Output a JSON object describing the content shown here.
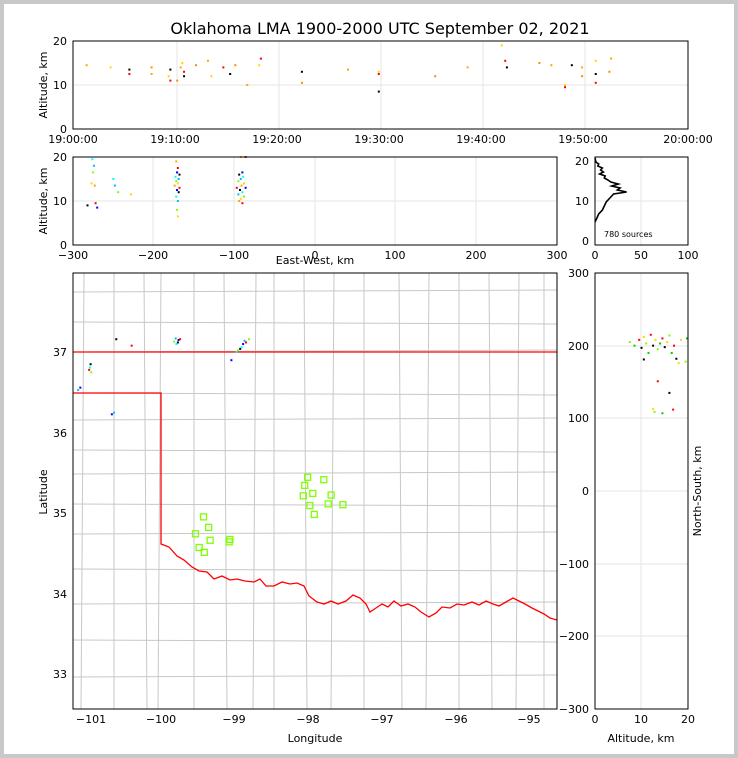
{
  "title": "Oklahoma LMA 1900-2000 UTC September 02, 2021",
  "panels": {
    "time_height": {
      "ylabel": "Altitude, km",
      "x_ticks": [
        "19:00:00",
        "19:10:00",
        "19:20:00",
        "19:30:00",
        "19:40:00",
        "19:50:00",
        "20:00:00"
      ],
      "y_ticks": [
        "0",
        "10",
        "20"
      ]
    },
    "ew_height": {
      "ylabel": "Altitude, km",
      "xlabel": "East-West, km",
      "x_ticks": [
        "−300",
        "−200",
        "−100",
        "0",
        "100",
        "200",
        "300"
      ],
      "y_ticks": [
        "0",
        "10",
        "20"
      ]
    },
    "histogram": {
      "x_ticks": [
        "0",
        "50",
        "100"
      ],
      "y_ticks": [
        "0",
        "10",
        "20"
      ],
      "annotation": "780 sources"
    },
    "map": {
      "xlabel": "Longitude",
      "ylabel": "Latitude",
      "x_ticks": [
        "−101",
        "−100",
        "−99",
        "−98",
        "−97",
        "−96",
        "−95"
      ],
      "y_ticks": [
        "33",
        "34",
        "35",
        "36",
        "37"
      ]
    },
    "ns_height": {
      "xlabel": "Altitude, km",
      "ylabel": "North-South, km",
      "x_ticks": [
        "0",
        "10",
        "20"
      ],
      "y_ticks": [
        "−300",
        "−200",
        "−100",
        "0",
        "100",
        "200",
        "300"
      ]
    }
  },
  "colors": {
    "background": "#c8c8c8",
    "state_border": "#ff0000",
    "county_lines": "#c8c8c8",
    "station_marker": "#7fff00",
    "gridline": "#e6e6e6"
  },
  "chart_data": [
    {
      "type": "scatter",
      "panel": "time_height",
      "xlabel": "",
      "ylabel": "Altitude, km",
      "xlim": [
        "19:00:00",
        "20:00:00"
      ],
      "ylim": [
        0,
        20
      ],
      "grid": true,
      "points": [
        {
          "t": "19:01:20",
          "alt": 14.5
        },
        {
          "t": "19:03:40",
          "alt": 14.0
        },
        {
          "t": "19:05:30",
          "alt": 12.5
        },
        {
          "t": "19:05:30",
          "alt": 13.5
        },
        {
          "t": "19:07:40",
          "alt": 14.0
        },
        {
          "t": "19:07:40",
          "alt": 12.5
        },
        {
          "t": "19:09:20",
          "alt": 12.0
        },
        {
          "t": "19:09:30",
          "alt": 11.0
        },
        {
          "t": "19:09:30",
          "alt": 13.5
        },
        {
          "t": "19:10:10",
          "alt": 11.0
        },
        {
          "t": "19:10:30",
          "alt": 14.0
        },
        {
          "t": "19:10:40",
          "alt": 15.0
        },
        {
          "t": "19:10:50",
          "alt": 13.0
        },
        {
          "t": "19:10:50",
          "alt": 12.0
        },
        {
          "t": "19:12:00",
          "alt": 14.5
        },
        {
          "t": "19:13:10",
          "alt": 15.5
        },
        {
          "t": "19:13:30",
          "alt": 12.0
        },
        {
          "t": "19:14:40",
          "alt": 14.0
        },
        {
          "t": "19:15:20",
          "alt": 12.5
        },
        {
          "t": "19:15:50",
          "alt": 14.5
        },
        {
          "t": "19:17:00",
          "alt": 10.0
        },
        {
          "t": "19:18:10",
          "alt": 14.5
        },
        {
          "t": "19:18:20",
          "alt": 16.0
        },
        {
          "t": "19:22:20",
          "alt": 13.0
        },
        {
          "t": "19:22:20",
          "alt": 10.5
        },
        {
          "t": "19:26:50",
          "alt": 13.5
        },
        {
          "t": "19:29:50",
          "alt": 13.0
        },
        {
          "t": "19:29:50",
          "alt": 12.5
        },
        {
          "t": "19:29:50",
          "alt": 8.5
        },
        {
          "t": "19:35:20",
          "alt": 12.0
        },
        {
          "t": "19:38:30",
          "alt": 14.0
        },
        {
          "t": "19:41:50",
          "alt": 19.0
        },
        {
          "t": "19:42:10",
          "alt": 15.5
        },
        {
          "t": "19:42:20",
          "alt": 14.0
        },
        {
          "t": "19:45:30",
          "alt": 15.0
        },
        {
          "t": "19:46:40",
          "alt": 14.5
        },
        {
          "t": "19:48:00",
          "alt": 10.0
        },
        {
          "t": "19:48:00",
          "alt": 9.5
        },
        {
          "t": "19:48:40",
          "alt": 14.5
        },
        {
          "t": "19:49:40",
          "alt": 12.0
        },
        {
          "t": "19:49:40",
          "alt": 14.0
        },
        {
          "t": "19:51:00",
          "alt": 15.5
        },
        {
          "t": "19:51:00",
          "alt": 10.5
        },
        {
          "t": "19:51:00",
          "alt": 12.5
        },
        {
          "t": "19:52:20",
          "alt": 13.0
        },
        {
          "t": "19:52:30",
          "alt": 16.0
        }
      ]
    },
    {
      "type": "scatter",
      "panel": "ew_height",
      "xlabel": "East-West, km",
      "ylabel": "Altitude, km",
      "xlim": [
        -300,
        300
      ],
      "ylim": [
        0,
        20
      ],
      "grid": true,
      "points": [
        {
          "x": -276,
          "alt": 19.5
        },
        {
          "x": -274,
          "alt": 18.0
        },
        {
          "x": -275,
          "alt": 16.5
        },
        {
          "x": -277,
          "alt": 14.0
        },
        {
          "x": -273,
          "alt": 13.5
        },
        {
          "x": -272,
          "alt": 9.5
        },
        {
          "x": -270,
          "alt": 8.5
        },
        {
          "x": -282,
          "alt": 9.0
        },
        {
          "x": -250,
          "alt": 15.0
        },
        {
          "x": -248,
          "alt": 13.5
        },
        {
          "x": -244,
          "alt": 12.0
        },
        {
          "x": -228,
          "alt": 11.5
        },
        {
          "x": -172,
          "alt": 19.0
        },
        {
          "x": -170,
          "alt": 17.5
        },
        {
          "x": -171,
          "alt": 16.5
        },
        {
          "x": -168,
          "alt": 16.0
        },
        {
          "x": -173,
          "alt": 15.5
        },
        {
          "x": -169,
          "alt": 15.0
        },
        {
          "x": -172,
          "alt": 14.5
        },
        {
          "x": -170,
          "alt": 14.0
        },
        {
          "x": -174,
          "alt": 13.5
        },
        {
          "x": -168,
          "alt": 13.0
        },
        {
          "x": -171,
          "alt": 12.5
        },
        {
          "x": -169,
          "alt": 12.0
        },
        {
          "x": -172,
          "alt": 11.0
        },
        {
          "x": -170,
          "alt": 10.0
        },
        {
          "x": -171,
          "alt": 8.0
        },
        {
          "x": -170,
          "alt": 6.5
        },
        {
          "x": -92,
          "alt": 20.0
        },
        {
          "x": -86,
          "alt": 20.0
        },
        {
          "x": -90,
          "alt": 16.5
        },
        {
          "x": -94,
          "alt": 16.0
        },
        {
          "x": -89,
          "alt": 15.5
        },
        {
          "x": -92,
          "alt": 15.0
        },
        {
          "x": -95,
          "alt": 14.5
        },
        {
          "x": -88,
          "alt": 14.0
        },
        {
          "x": -91,
          "alt": 13.5
        },
        {
          "x": -97,
          "alt": 13.0
        },
        {
          "x": -86,
          "alt": 13.0
        },
        {
          "x": -93,
          "alt": 12.5
        },
        {
          "x": -90,
          "alt": 12.0
        },
        {
          "x": -95,
          "alt": 11.5
        },
        {
          "x": -88,
          "alt": 11.0
        },
        {
          "x": -92,
          "alt": 10.5
        },
        {
          "x": -94,
          "alt": 10.0
        },
        {
          "x": -90,
          "alt": 9.5
        }
      ]
    },
    {
      "type": "line",
      "panel": "histogram",
      "annotation": "780 sources",
      "xlim": [
        0,
        100
      ],
      "ylim": [
        0,
        20
      ],
      "altitude_km": [
        5,
        6,
        7,
        8,
        9,
        10,
        11,
        12,
        12.5,
        13,
        13.5,
        14,
        14.5,
        15,
        15.5,
        16,
        16.5,
        17,
        17.5,
        18,
        18.5,
        19,
        19.5,
        20,
        21
      ],
      "source_counts": [
        0,
        2,
        4,
        8,
        10,
        12,
        16,
        20,
        34,
        24,
        27,
        18,
        25,
        17,
        14,
        10,
        11,
        5,
        9,
        6,
        8,
        3,
        4,
        1,
        0
      ]
    },
    {
      "type": "scatter",
      "panel": "map",
      "xlabel": "Longitude",
      "ylabel": "Latitude",
      "xlim": [
        -101.2,
        -94.6
      ],
      "ylim": [
        32.6,
        38.0
      ],
      "grid": false,
      "sources": [
        {
          "lon": -101.1,
          "lat": 36.58
        },
        {
          "lon": -101.13,
          "lat": 36.55
        },
        {
          "lon": -100.96,
          "lat": 36.87
        },
        {
          "lon": -100.98,
          "lat": 36.8
        },
        {
          "lon": -100.95,
          "lat": 36.77
        },
        {
          "lon": -100.97,
          "lat": 36.83
        },
        {
          "lon": -100.67,
          "lat": 36.25
        },
        {
          "lon": -100.64,
          "lat": 36.27
        },
        {
          "lon": -100.61,
          "lat": 37.18
        },
        {
          "lon": -100.4,
          "lat": 37.1
        },
        {
          "lon": -99.82,
          "lat": 37.15
        },
        {
          "lon": -99.79,
          "lat": 37.12
        },
        {
          "lon": -99.76,
          "lat": 37.17
        },
        {
          "lon": -99.8,
          "lat": 37.19
        },
        {
          "lon": -99.77,
          "lat": 37.14
        },
        {
          "lon": -99.74,
          "lat": 37.18
        },
        {
          "lon": -98.95,
          "lat": 37.04
        },
        {
          "lon": -98.9,
          "lat": 37.08
        },
        {
          "lon": -98.88,
          "lat": 37.12
        },
        {
          "lon": -98.86,
          "lat": 37.16
        },
        {
          "lon": -98.92,
          "lat": 37.06
        },
        {
          "lon": -98.84,
          "lat": 37.14
        },
        {
          "lon": -98.8,
          "lat": 37.18
        },
        {
          "lon": -98.97,
          "lat": 37.02
        },
        {
          "lon": -99.04,
          "lat": 36.92
        }
      ],
      "stations": [
        {
          "lon": -98.0,
          "lat": 35.47
        },
        {
          "lon": -98.04,
          "lat": 35.37
        },
        {
          "lon": -98.06,
          "lat": 35.24
        },
        {
          "lon": -97.93,
          "lat": 35.27
        },
        {
          "lon": -97.78,
          "lat": 35.44
        },
        {
          "lon": -97.68,
          "lat": 35.25
        },
        {
          "lon": -97.97,
          "lat": 35.12
        },
        {
          "lon": -97.91,
          "lat": 35.01
        },
        {
          "lon": -97.72,
          "lat": 35.14
        },
        {
          "lon": -97.52,
          "lat": 35.13
        },
        {
          "lon": -99.42,
          "lat": 34.98
        },
        {
          "lon": -99.35,
          "lat": 34.85
        },
        {
          "lon": -99.53,
          "lat": 34.77
        },
        {
          "lon": -99.33,
          "lat": 34.69
        },
        {
          "lon": -99.06,
          "lat": 34.7
        },
        {
          "lon": -99.07,
          "lat": 34.67
        },
        {
          "lon": -99.48,
          "lat": 34.6
        },
        {
          "lon": -99.41,
          "lat": 34.54
        }
      ]
    },
    {
      "type": "scatter",
      "panel": "ns_height",
      "xlabel": "Altitude, km",
      "ylabel": "North-South, km",
      "xlim": [
        0,
        20
      ],
      "ylim": [
        -300,
        300
      ],
      "grid": true,
      "points": [
        {
          "alt": 7.5,
          "y": 205
        },
        {
          "alt": 8.5,
          "y": 200
        },
        {
          "alt": 9.5,
          "y": 208
        },
        {
          "alt": 10.0,
          "y": 197
        },
        {
          "alt": 10.5,
          "y": 212
        },
        {
          "alt": 11.0,
          "y": 203
        },
        {
          "alt": 11.5,
          "y": 190
        },
        {
          "alt": 12.0,
          "y": 215
        },
        {
          "alt": 12.5,
          "y": 200
        },
        {
          "alt": 13.0,
          "y": 208
        },
        {
          "alt": 13.5,
          "y": 195
        },
        {
          "alt": 14.0,
          "y": 203
        },
        {
          "alt": 14.5,
          "y": 210
        },
        {
          "alt": 15.0,
          "y": 198
        },
        {
          "alt": 15.5,
          "y": 205
        },
        {
          "alt": 16.0,
          "y": 214
        },
        {
          "alt": 16.5,
          "y": 190
        },
        {
          "alt": 17.0,
          "y": 200
        },
        {
          "alt": 17.5,
          "y": 182
        },
        {
          "alt": 18.5,
          "y": 208
        },
        {
          "alt": 19.5,
          "y": 178
        },
        {
          "alt": 19.8,
          "y": 210
        },
        {
          "alt": 13.5,
          "y": 151
        },
        {
          "alt": 16.0,
          "y": 135
        },
        {
          "alt": 12.5,
          "y": 113
        },
        {
          "alt": 12.8,
          "y": 109
        },
        {
          "alt": 14.5,
          "y": 107
        },
        {
          "alt": 16.8,
          "y": 112
        },
        {
          "alt": 10.5,
          "y": 181
        },
        {
          "alt": 18.0,
          "y": 176
        }
      ]
    }
  ]
}
